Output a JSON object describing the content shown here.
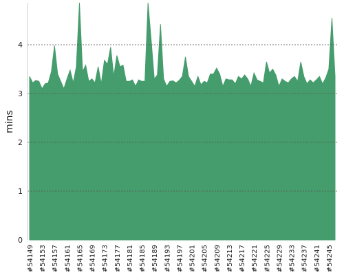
{
  "chart_data": {
    "type": "area",
    "y_label": "mins",
    "color": "#459c6c",
    "grid": true,
    "ylim": [
      0,
      4.86
    ],
    "yticks": [
      0,
      1,
      2,
      3,
      4
    ],
    "categories": [
      "#54149",
      null,
      null,
      null,
      "#54153",
      null,
      null,
      null,
      "#54157",
      null,
      null,
      null,
      "#54161",
      null,
      null,
      null,
      "#54165",
      null,
      null,
      null,
      "#54169",
      null,
      null,
      null,
      "#54173",
      null,
      null,
      null,
      "#54177",
      null,
      null,
      null,
      "#54181",
      null,
      null,
      null,
      "#54185",
      null,
      null,
      null,
      "#54189",
      null,
      null,
      null,
      "#54193",
      null,
      null,
      null,
      "#54197",
      null,
      null,
      null,
      "#54201",
      null,
      null,
      null,
      "#54205",
      null,
      null,
      null,
      "#54209",
      null,
      null,
      null,
      "#54213",
      null,
      null,
      null,
      "#54217",
      null,
      null,
      null,
      "#54221",
      null,
      null,
      null,
      "#54225",
      null,
      null,
      null,
      "#54229",
      null,
      null,
      null,
      "#54233",
      null,
      null,
      null,
      "#54237",
      null,
      null,
      null,
      "#54241",
      null,
      null,
      null,
      "#54245",
      null,
      null
    ],
    "values": [
      3.35,
      3.22,
      3.27,
      3.25,
      3.1,
      3.2,
      3.22,
      3.45,
      3.98,
      3.4,
      3.25,
      3.1,
      3.3,
      3.48,
      3.22,
      3.55,
      4.86,
      3.45,
      3.58,
      3.25,
      3.3,
      3.22,
      3.55,
      3.2,
      3.68,
      3.6,
      3.95,
      3.35,
      3.78,
      3.55,
      3.58,
      3.25,
      3.25,
      3.28,
      3.15,
      3.28,
      3.25,
      3.25,
      4.86,
      4.1,
      3.3,
      3.38,
      4.42,
      3.3,
      3.15,
      3.25,
      3.26,
      3.22,
      3.27,
      3.35,
      3.75,
      3.35,
      3.25,
      3.15,
      3.35,
      3.18,
      3.25,
      3.22,
      3.4,
      3.4,
      3.52,
      3.4,
      3.15,
      3.3,
      3.28,
      3.28,
      3.2,
      3.35,
      3.3,
      3.38,
      3.3,
      3.15,
      3.42,
      3.28,
      3.25,
      3.22,
      3.65,
      3.42,
      3.5,
      3.38,
      3.15,
      3.3,
      3.25,
      3.22,
      3.3,
      3.35,
      3.25,
      3.65,
      3.35,
      3.2,
      3.28,
      3.22,
      3.28,
      3.35,
      3.2,
      3.32,
      3.5,
      4.55,
      3.35
    ]
  }
}
